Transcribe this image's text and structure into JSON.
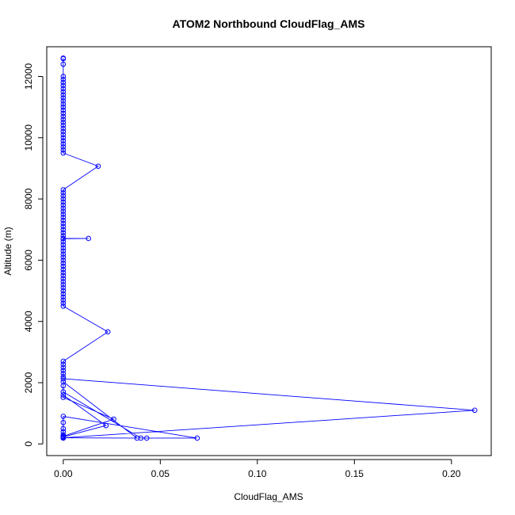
{
  "chart_data": {
    "type": "line",
    "title": "ATOM2 Northbound CloudFlag_AMS",
    "xlabel": "CloudFlag_AMS",
    "ylabel": "Altitude (m)",
    "xlim": [
      -0.0085,
      0.2205
    ],
    "ylim": [
      -380,
      12970
    ],
    "x_ticks": [
      0.0,
      0.05,
      0.1,
      0.15,
      0.2
    ],
    "x_tick_labels": [
      "0.00",
      "0.05",
      "0.10",
      "0.15",
      "0.20"
    ],
    "y_ticks": [
      0,
      2000,
      4000,
      6000,
      8000,
      10000,
      12000
    ],
    "y_tick_labels": [
      "0",
      "2000",
      "4000",
      "6000",
      "8000",
      "10000",
      "12000"
    ],
    "grid": false,
    "series": [
      {
        "color": "#0000ff",
        "marker": "open-circle",
        "points": [
          [
            0.0,
            12600
          ],
          [
            0.0,
            12580
          ],
          [
            0.0,
            12400
          ],
          [
            0.0,
            12000
          ],
          [
            0.0,
            11900
          ],
          [
            0.0,
            11800
          ],
          [
            0.0,
            11700
          ],
          [
            0.0,
            11600
          ],
          [
            0.0,
            11500
          ],
          [
            0.0,
            11400
          ],
          [
            0.0,
            11300
          ],
          [
            0.0,
            11200
          ],
          [
            0.0,
            11100
          ],
          [
            0.0,
            11000
          ],
          [
            0.0,
            10900
          ],
          [
            0.0,
            10800
          ],
          [
            0.0,
            10700
          ],
          [
            0.0,
            10600
          ],
          [
            0.0,
            10500
          ],
          [
            0.0,
            10400
          ],
          [
            0.0,
            10300
          ],
          [
            0.0,
            10200
          ],
          [
            0.0,
            10100
          ],
          [
            0.0,
            10000
          ],
          [
            0.0,
            9900
          ],
          [
            0.0,
            9800
          ],
          [
            0.0,
            9700
          ],
          [
            0.0,
            9600
          ],
          [
            0.0,
            9500
          ],
          [
            0.018,
            9070
          ],
          [
            0.0,
            8300
          ],
          [
            0.0,
            8200
          ],
          [
            0.0,
            8100
          ],
          [
            0.0,
            8000
          ],
          [
            0.0,
            7900
          ],
          [
            0.0,
            7800
          ],
          [
            0.0,
            7700
          ],
          [
            0.0,
            7600
          ],
          [
            0.0,
            7500
          ],
          [
            0.0,
            7400
          ],
          [
            0.0,
            7300
          ],
          [
            0.0,
            7200
          ],
          [
            0.0,
            7100
          ],
          [
            0.0,
            7000
          ],
          [
            0.0,
            6900
          ],
          [
            0.0,
            6800
          ],
          [
            0.0,
            6710
          ],
          [
            0.013,
            6710
          ],
          [
            0.0,
            6700
          ],
          [
            0.0,
            6600
          ],
          [
            0.0,
            6500
          ],
          [
            0.0,
            6400
          ],
          [
            0.0,
            6300
          ],
          [
            0.0,
            6200
          ],
          [
            0.0,
            6100
          ],
          [
            0.0,
            6000
          ],
          [
            0.0,
            5900
          ],
          [
            0.0,
            5800
          ],
          [
            0.0,
            5700
          ],
          [
            0.0,
            5600
          ],
          [
            0.0,
            5500
          ],
          [
            0.0,
            5400
          ],
          [
            0.0,
            5300
          ],
          [
            0.0,
            5200
          ],
          [
            0.0,
            5100
          ],
          [
            0.0,
            5000
          ],
          [
            0.0,
            4900
          ],
          [
            0.0,
            4800
          ],
          [
            0.0,
            4700
          ],
          [
            0.0,
            4600
          ],
          [
            0.0,
            4500
          ],
          [
            0.023,
            3660
          ],
          [
            0.0,
            2700
          ],
          [
            0.0,
            2600
          ],
          [
            0.0,
            2500
          ],
          [
            0.0,
            2400
          ],
          [
            0.0,
            2300
          ],
          [
            0.0,
            2200
          ],
          [
            0.0,
            2130
          ],
          [
            0.212,
            1100
          ],
          [
            0.0,
            200
          ],
          [
            0.0,
            230
          ],
          [
            0.022,
            600
          ],
          [
            0.0,
            1600
          ],
          [
            0.0,
            1520
          ],
          [
            0.026,
            810
          ],
          [
            0.0,
            250
          ],
          [
            0.0,
            200
          ],
          [
            0.038,
            190
          ],
          [
            0.0,
            2030
          ],
          [
            0.0,
            1900
          ],
          [
            0.0,
            1700
          ],
          [
            0.04,
            190
          ],
          [
            0.043,
            190
          ],
          [
            0.069,
            190
          ],
          [
            0.0,
            900
          ],
          [
            0.0,
            700
          ],
          [
            0.0,
            500
          ],
          [
            0.0,
            400
          ],
          [
            0.0,
            300
          ],
          [
            0.0,
            190
          ]
        ]
      }
    ]
  }
}
